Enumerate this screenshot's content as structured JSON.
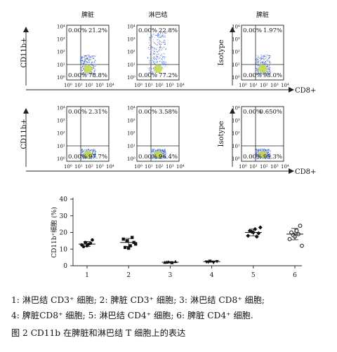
{
  "flow_panels": [
    {
      "title": "脾脏",
      "ylabel": "CD11b+",
      "q": [
        "0.00%",
        "21.2%",
        "0.00%",
        "78.8%"
      ]
    },
    {
      "title": "淋巴结",
      "ylabel": "",
      "q": [
        "0.00%",
        "22.8%",
        "0.00%",
        "77.2%"
      ]
    },
    {
      "title": "脾脏",
      "ylabel": "Isotype",
      "q": [
        "0.00%",
        "1.97%",
        "0.00%",
        "98.0%"
      ]
    },
    {
      "title": "",
      "ylabel": "CD11b+",
      "q": [
        "0.00%",
        "2.31%",
        "0.00%",
        "97.7%"
      ]
    },
    {
      "title": "",
      "ylabel": "",
      "q": [
        "0.00%",
        "3.58%",
        "0.00%",
        "96.4%"
      ]
    },
    {
      "title": "",
      "ylabel": "Isotype",
      "q": [
        "0.00%",
        "0.650%",
        "0.00%",
        "99.3%"
      ]
    }
  ],
  "flow_row_xlabel": "CD8+",
  "flow_ticks": [
    "10⁰",
    "10¹",
    "10²",
    "10³",
    "10⁴"
  ],
  "chart_data": {
    "type": "scatter",
    "categories": [
      "1",
      "2",
      "3",
      "4",
      "5",
      "6"
    ],
    "xlabel": "",
    "ylabel": "CD11b⁺细胞 (%)",
    "ylim": [
      0,
      40
    ],
    "yticks": [
      0,
      10,
      20,
      30,
      40
    ],
    "points": [
      [
        12.5,
        14.0,
        13.0,
        15.5,
        11.5,
        12.0,
        13.5
      ],
      [
        16.0,
        15.0,
        12.0,
        14.0,
        11.0,
        10.5,
        17.0,
        13.0
      ],
      [
        2.0,
        2.3,
        1.8,
        2.5,
        2.1
      ],
      [
        2.3,
        2.8,
        1.9,
        2.6,
        2.2
      ],
      [
        18.0,
        20.5,
        22.0,
        19.5,
        21.0,
        20.0,
        17.5,
        23.0
      ],
      [
        16.0,
        18.5,
        21.0,
        24.0,
        20.0,
        17.5,
        19.0,
        12.0
      ]
    ],
    "means": [
      13.0,
      14.0,
      2.1,
      2.5,
      20.0,
      19.0
    ],
    "sd": [
      1.5,
      2.4,
      0.4,
      0.4,
      2.0,
      3.4
    ]
  },
  "caption": {
    "line1": "1: 淋巴结 CD3⁺ 细胞; 2: 脾脏 CD3⁺ 细胞; 3: 淋巴结 CD8⁺ 细胞;",
    "line2": "4: 脾脏CD8⁺ 细胞; 5: 淋巴结 CD4⁺ 细胞; 6: 脾脏 CD4⁺ 细胞.",
    "figure": "图 2  CD11b 在脾脏和淋巴结 T 细胞上的表达"
  }
}
